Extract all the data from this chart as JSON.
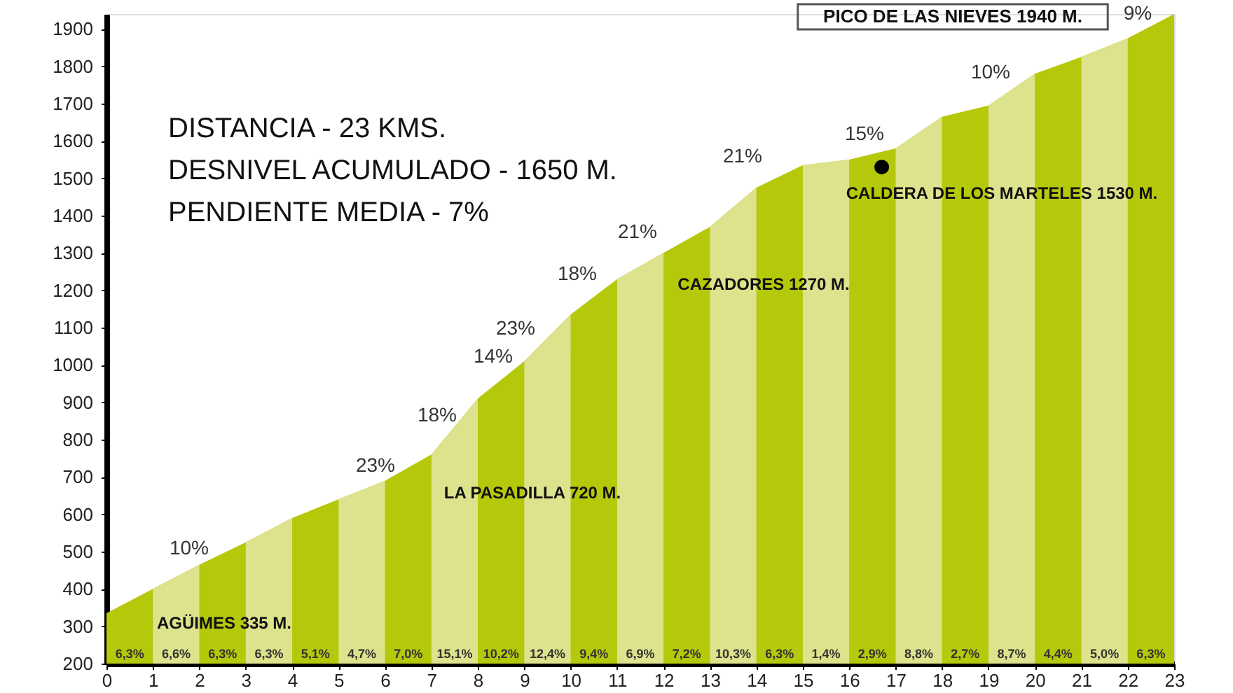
{
  "chart_data": {
    "type": "area",
    "x": [
      0,
      1,
      2,
      3,
      4,
      5,
      6,
      7,
      8,
      9,
      10,
      11,
      12,
      13,
      14,
      15,
      16,
      17,
      18,
      19,
      20,
      21,
      22,
      23
    ],
    "series": [
      {
        "values": [
          335,
          400,
          465,
          525,
          590,
          640,
          690,
          760,
          910,
          1010,
          1135,
          1230,
          1300,
          1370,
          1475,
          1535,
          1550,
          1580,
          1665,
          1695,
          1780,
          1825,
          1875,
          1940
        ],
        "color": "#b5c80a"
      },
      {
        "type": "scatter",
        "x": [
          16.7
        ],
        "values": [
          1530
        ],
        "color": "#000000"
      }
    ],
    "bands": [
      {
        "axis": "x",
        "from": 1,
        "to": 2,
        "color": "#dde28c"
      },
      {
        "axis": "x",
        "from": 3,
        "to": 4,
        "color": "#dde28c"
      },
      {
        "axis": "x",
        "from": 5,
        "to": 6,
        "color": "#dde28c"
      },
      {
        "axis": "x",
        "from": 7,
        "to": 8,
        "color": "#dde28c"
      },
      {
        "axis": "x",
        "from": 9,
        "to": 10,
        "color": "#dde28c"
      },
      {
        "axis": "x",
        "from": 11,
        "to": 12,
        "color": "#dde28c"
      },
      {
        "axis": "x",
        "from": 13,
        "to": 14,
        "color": "#dde28c"
      },
      {
        "axis": "x",
        "from": 15,
        "to": 16,
        "color": "#dde28c"
      },
      {
        "axis": "x",
        "from": 17,
        "to": 18,
        "color": "#dde28c"
      },
      {
        "axis": "x",
        "from": 19,
        "to": 20,
        "color": "#dde28c"
      },
      {
        "axis": "x",
        "from": 21,
        "to": 22,
        "color": "#dde28c"
      }
    ],
    "xlim": [
      0,
      23
    ],
    "xticks": [
      0,
      1,
      2,
      3,
      4,
      5,
      6,
      7,
      8,
      9,
      10,
      11,
      12,
      13,
      14,
      15,
      16,
      17,
      18,
      19,
      20,
      21,
      22,
      23
    ],
    "ylim": [
      200,
      1940
    ],
    "yticks": [
      200,
      300,
      400,
      500,
      600,
      700,
      800,
      900,
      1000,
      1100,
      1200,
      1300,
      1400,
      1500,
      1600,
      1700,
      1800,
      1900
    ],
    "grid": false,
    "annotations": [
      "DISTANCIA - 23 KMS.",
      "DESNIVEL ACUMULADO - 1650 M.",
      "PENDIENTE MEDIA - 7%",
      "AGÜIMES 335 M.",
      "LA PASADILLA 720 M.",
      "CAZADORES 1270 M.",
      "CALDERA DE LOS MARTELES 1530 M.",
      "PICO DE LAS NIEVES 1940 M.",
      "10%",
      "23%",
      "18%",
      "14%",
      "23%",
      "18%",
      "21%",
      "21%",
      "15%",
      "10%",
      "9%",
      "6,3%",
      "6,6%",
      "6,3%",
      "6,3%",
      "5,1%",
      "4,7%",
      "7,0%",
      "15,1%",
      "10,2%",
      "12,4%",
      "9,4%",
      "6,9%",
      "7,2%",
      "10,3%",
      "6,3%",
      "1,4%",
      "2,9%",
      "8,8%",
      "2,7%",
      "8,7%",
      "4,4%",
      "5,0%",
      "6,3%"
    ]
  }
}
